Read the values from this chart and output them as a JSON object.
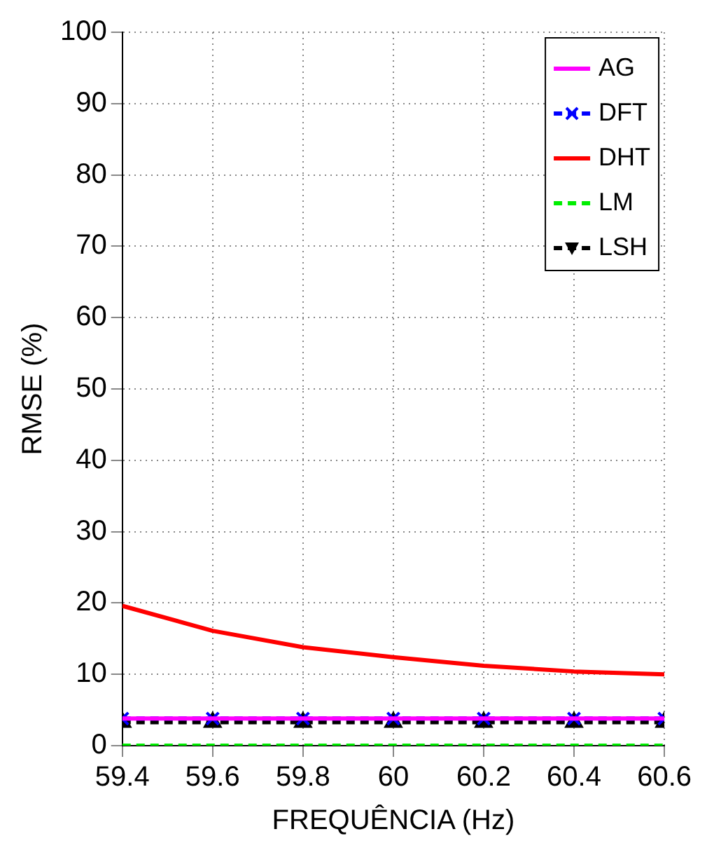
{
  "chart_data": {
    "type": "line",
    "xlabel": "FREQUÊNCIA (Hz)",
    "ylabel": "RMSE (%)",
    "x": [
      59.4,
      59.6,
      59.8,
      60,
      60.2,
      60.4,
      60.6
    ],
    "series": [
      {
        "name": "AG",
        "color": "#ff00ff",
        "values": [
          3.8,
          3.8,
          3.8,
          3.8,
          3.8,
          3.8,
          3.8
        ],
        "marker": "none",
        "line_style": "solid"
      },
      {
        "name": "DFT",
        "color": "#0000ff",
        "values": [
          3.8,
          3.8,
          3.8,
          3.8,
          3.8,
          3.8,
          3.8
        ],
        "marker": "cross",
        "line_style": "dashed"
      },
      {
        "name": "DHT",
        "color": "#ff0000",
        "values": [
          19.6,
          16.1,
          13.8,
          12.4,
          11.2,
          10.4,
          10.0
        ],
        "marker": "none",
        "line_style": "solid"
      },
      {
        "name": "LM",
        "color": "#00ee00",
        "values": [
          0,
          0,
          0,
          0,
          0,
          0,
          0
        ],
        "marker": "none",
        "line_style": "dashed"
      },
      {
        "name": "LSH",
        "color": "#000000",
        "values": [
          3.3,
          3.3,
          3.3,
          3.3,
          3.3,
          3.3,
          3.3
        ],
        "marker": "triangle",
        "line_style": "dashed"
      }
    ],
    "xlim": [
      59.4,
      60.6
    ],
    "xticks": [
      59.4,
      59.6,
      59.8,
      60,
      60.2,
      60.4,
      60.6
    ],
    "ylim": [
      0,
      100
    ],
    "yticks": [
      0,
      10,
      20,
      30,
      40,
      50,
      60,
      70,
      80,
      90,
      100
    ],
    "grid": true,
    "legend": "top right"
  }
}
